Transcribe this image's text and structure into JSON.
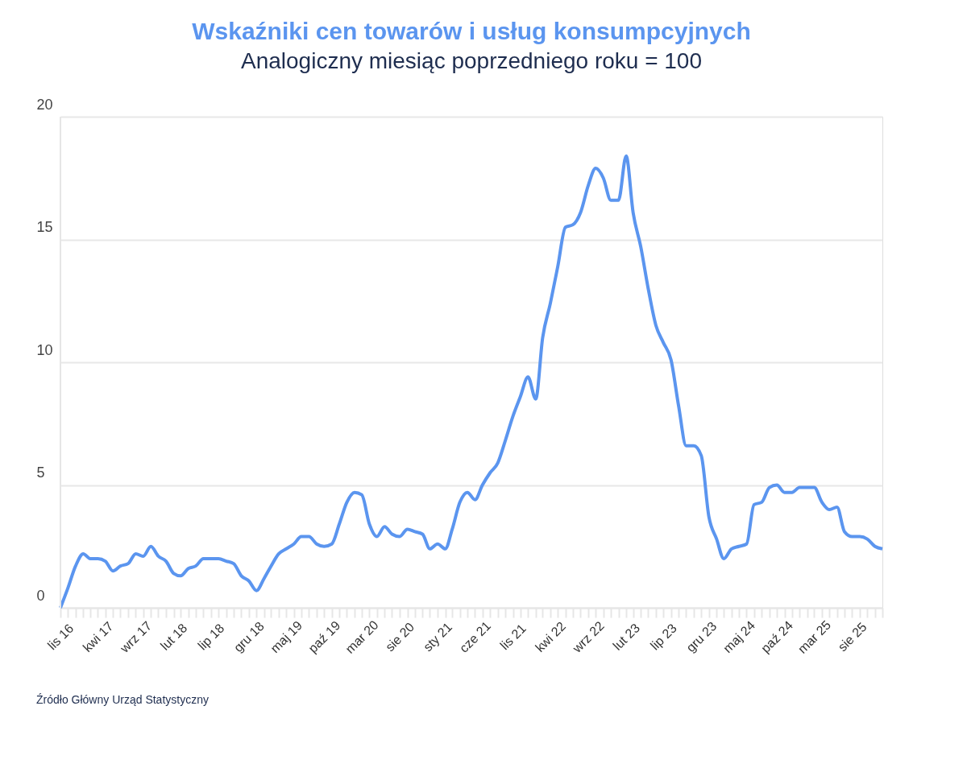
{
  "chart_data": {
    "type": "line",
    "title": "Wskaźniki cen towarów i usług konsumpcyjnych",
    "subtitle": "Analogiczny miesiąc poprzedniego roku = 100",
    "x": [
      "2016-11",
      "2016-12",
      "2017-01",
      "2017-02",
      "2017-03",
      "2017-04",
      "2017-05",
      "2017-06",
      "2017-07",
      "2017-08",
      "2017-09",
      "2017-10",
      "2017-11",
      "2017-12",
      "2018-01",
      "2018-02",
      "2018-03",
      "2018-04",
      "2018-05",
      "2018-06",
      "2018-07",
      "2018-08",
      "2018-09",
      "2018-10",
      "2018-11",
      "2018-12",
      "2019-01",
      "2019-02",
      "2019-03",
      "2019-04",
      "2019-05",
      "2019-06",
      "2019-07",
      "2019-08",
      "2019-09",
      "2019-10",
      "2019-11",
      "2019-12",
      "2020-01",
      "2020-02",
      "2020-03",
      "2020-04",
      "2020-05",
      "2020-06",
      "2020-07",
      "2020-08",
      "2020-09",
      "2020-10",
      "2020-11",
      "2020-12",
      "2021-01",
      "2021-02",
      "2021-03",
      "2021-04",
      "2021-05",
      "2021-06",
      "2021-07",
      "2021-08",
      "2021-09",
      "2021-10",
      "2021-11",
      "2021-12",
      "2022-01",
      "2022-02",
      "2022-03",
      "2022-04",
      "2022-05",
      "2022-06",
      "2022-07",
      "2022-08",
      "2022-09",
      "2022-10",
      "2022-11",
      "2022-12",
      "2023-01",
      "2023-02",
      "2023-03",
      "2023-04",
      "2023-05",
      "2023-06",
      "2023-07",
      "2023-08",
      "2023-09",
      "2023-10",
      "2023-11",
      "2023-12",
      "2024-01",
      "2024-02",
      "2024-03",
      "2024-04",
      "2024-05",
      "2024-06",
      "2024-07",
      "2024-08",
      "2024-09",
      "2024-10",
      "2024-11",
      "2024-12",
      "2025-01",
      "2025-02",
      "2025-03",
      "2025-04",
      "2025-05",
      "2025-06",
      "2025-07",
      "2025-08",
      "2025-09",
      "2025-10",
      "2025-11",
      "2025-12"
    ],
    "series": [
      {
        "color": "#5b95ef",
        "values": [
          0.0,
          0.8,
          1.7,
          2.2,
          2.0,
          2.0,
          1.9,
          1.5,
          1.7,
          1.8,
          2.2,
          2.1,
          2.5,
          2.1,
          1.9,
          1.4,
          1.3,
          1.6,
          1.7,
          2.0,
          2.0,
          2.0,
          1.9,
          1.8,
          1.3,
          1.1,
          0.7,
          1.2,
          1.7,
          2.2,
          2.4,
          2.6,
          2.9,
          2.9,
          2.6,
          2.5,
          2.6,
          3.4,
          4.3,
          4.7,
          4.6,
          3.4,
          2.9,
          3.3,
          3.0,
          2.9,
          3.2,
          3.1,
          3.0,
          2.4,
          2.6,
          2.4,
          3.2,
          4.3,
          4.7,
          4.4,
          5.0,
          5.5,
          5.9,
          6.8,
          7.8,
          8.6,
          9.4,
          8.5,
          11.0,
          12.4,
          13.9,
          15.5,
          15.6,
          16.1,
          17.2,
          17.9,
          17.5,
          16.6,
          16.6,
          18.4,
          16.1,
          14.7,
          13.0,
          11.5,
          10.8,
          10.1,
          8.2,
          6.6,
          6.6,
          6.2,
          3.7,
          2.8,
          2.0,
          2.4,
          2.5,
          2.6,
          4.2,
          4.3,
          4.9,
          5.0,
          4.7,
          4.7,
          4.9,
          4.9,
          4.9,
          4.3,
          4.0,
          4.1,
          3.1,
          2.9,
          2.9,
          2.8,
          2.5,
          2.4
        ]
      }
    ],
    "xlim": [
      "2016-11",
      "2025-12"
    ],
    "xticks": [
      {
        "value": "2016-11",
        "label": "lis 16"
      },
      {
        "value": "2016-12",
        "label": null
      },
      {
        "value": "2017-01",
        "label": null
      },
      {
        "value": "2017-02",
        "label": null
      },
      {
        "value": "2017-03",
        "label": null
      },
      {
        "value": "2017-04",
        "label": "kwi 17"
      },
      {
        "value": "2017-05",
        "label": null
      },
      {
        "value": "2017-06",
        "label": null
      },
      {
        "value": "2017-07",
        "label": null
      },
      {
        "value": "2017-08",
        "label": null
      },
      {
        "value": "2017-09",
        "label": "wrz 17"
      },
      {
        "value": "2017-10",
        "label": null
      },
      {
        "value": "2017-11",
        "label": null
      },
      {
        "value": "2017-12",
        "label": null
      },
      {
        "value": "2018-01",
        "label": null
      },
      {
        "value": "2018-02",
        "label": "lut 18"
      },
      {
        "value": "2018-03",
        "label": null
      },
      {
        "value": "2018-04",
        "label": null
      },
      {
        "value": "2018-05",
        "label": null
      },
      {
        "value": "2018-06",
        "label": null
      },
      {
        "value": "2018-07",
        "label": "lip 18"
      },
      {
        "value": "2018-08",
        "label": null
      },
      {
        "value": "2018-09",
        "label": null
      },
      {
        "value": "2018-10",
        "label": null
      },
      {
        "value": "2018-11",
        "label": null
      },
      {
        "value": "2018-12",
        "label": "gru 18"
      },
      {
        "value": "2019-01",
        "label": null
      },
      {
        "value": "2019-02",
        "label": null
      },
      {
        "value": "2019-03",
        "label": null
      },
      {
        "value": "2019-04",
        "label": null
      },
      {
        "value": "2019-05",
        "label": "maj 19"
      },
      {
        "value": "2019-06",
        "label": null
      },
      {
        "value": "2019-07",
        "label": null
      },
      {
        "value": "2019-08",
        "label": null
      },
      {
        "value": "2019-09",
        "label": null
      },
      {
        "value": "2019-10",
        "label": "paź 19"
      },
      {
        "value": "2019-11",
        "label": null
      },
      {
        "value": "2019-12",
        "label": null
      },
      {
        "value": "2020-01",
        "label": null
      },
      {
        "value": "2020-02",
        "label": null
      },
      {
        "value": "2020-03",
        "label": "mar 20"
      },
      {
        "value": "2020-04",
        "label": null
      },
      {
        "value": "2020-05",
        "label": null
      },
      {
        "value": "2020-06",
        "label": null
      },
      {
        "value": "2020-07",
        "label": null
      },
      {
        "value": "2020-08",
        "label": "sie 20"
      },
      {
        "value": "2020-09",
        "label": null
      },
      {
        "value": "2020-10",
        "label": null
      },
      {
        "value": "2020-11",
        "label": null
      },
      {
        "value": "2020-12",
        "label": null
      },
      {
        "value": "2021-01",
        "label": "sty 21"
      },
      {
        "value": "2021-02",
        "label": null
      },
      {
        "value": "2021-03",
        "label": null
      },
      {
        "value": "2021-04",
        "label": null
      },
      {
        "value": "2021-05",
        "label": null
      },
      {
        "value": "2021-06",
        "label": "cze 21"
      },
      {
        "value": "2021-07",
        "label": null
      },
      {
        "value": "2021-08",
        "label": null
      },
      {
        "value": "2021-09",
        "label": null
      },
      {
        "value": "2021-10",
        "label": null
      },
      {
        "value": "2021-11",
        "label": "lis 21"
      },
      {
        "value": "2021-12",
        "label": null
      },
      {
        "value": "2022-01",
        "label": null
      },
      {
        "value": "2022-02",
        "label": null
      },
      {
        "value": "2022-03",
        "label": null
      },
      {
        "value": "2022-04",
        "label": "kwi 22"
      },
      {
        "value": "2022-05",
        "label": null
      },
      {
        "value": "2022-06",
        "label": null
      },
      {
        "value": "2022-07",
        "label": null
      },
      {
        "value": "2022-08",
        "label": null
      },
      {
        "value": "2022-09",
        "label": "wrz 22"
      },
      {
        "value": "2022-10",
        "label": null
      },
      {
        "value": "2022-11",
        "label": null
      },
      {
        "value": "2022-12",
        "label": null
      },
      {
        "value": "2023-01",
        "label": null
      },
      {
        "value": "2023-02",
        "label": "lut 23"
      },
      {
        "value": "2023-03",
        "label": null
      },
      {
        "value": "2023-04",
        "label": null
      },
      {
        "value": "2023-05",
        "label": null
      },
      {
        "value": "2023-06",
        "label": null
      },
      {
        "value": "2023-07",
        "label": "lip 23"
      },
      {
        "value": "2023-08",
        "label": null
      },
      {
        "value": "2023-09",
        "label": null
      },
      {
        "value": "2023-10",
        "label": null
      },
      {
        "value": "2023-11",
        "label": null
      },
      {
        "value": "2023-12",
        "label": "gru 23"
      },
      {
        "value": "2024-01",
        "label": null
      },
      {
        "value": "2024-02",
        "label": null
      },
      {
        "value": "2024-03",
        "label": null
      },
      {
        "value": "2024-04",
        "label": null
      },
      {
        "value": "2024-05",
        "label": "maj 24"
      },
      {
        "value": "2024-06",
        "label": null
      },
      {
        "value": "2024-07",
        "label": null
      },
      {
        "value": "2024-08",
        "label": null
      },
      {
        "value": "2024-09",
        "label": null
      },
      {
        "value": "2024-10",
        "label": "paź 24"
      },
      {
        "value": "2024-11",
        "label": null
      },
      {
        "value": "2024-12",
        "label": null
      },
      {
        "value": "2025-01",
        "label": null
      },
      {
        "value": "2025-02",
        "label": null
      },
      {
        "value": "2025-03",
        "label": "mar 25"
      },
      {
        "value": "2025-04",
        "label": null
      },
      {
        "value": "2025-05",
        "label": null
      },
      {
        "value": "2025-06",
        "label": null
      },
      {
        "value": "2025-07",
        "label": null
      },
      {
        "value": "2025-08",
        "label": "sie 25"
      },
      {
        "value": "2025-09",
        "label": null
      },
      {
        "value": "2025-10",
        "label": null
      },
      {
        "value": "2025-11",
        "label": null
      },
      {
        "value": "2025-12",
        "label": null
      }
    ],
    "ylim": [
      0,
      20
    ],
    "yticks": [
      0,
      5,
      10,
      15,
      20
    ],
    "grid": "y",
    "annotations": [
      "Źródło Główny Urząd Statystyczny"
    ]
  }
}
